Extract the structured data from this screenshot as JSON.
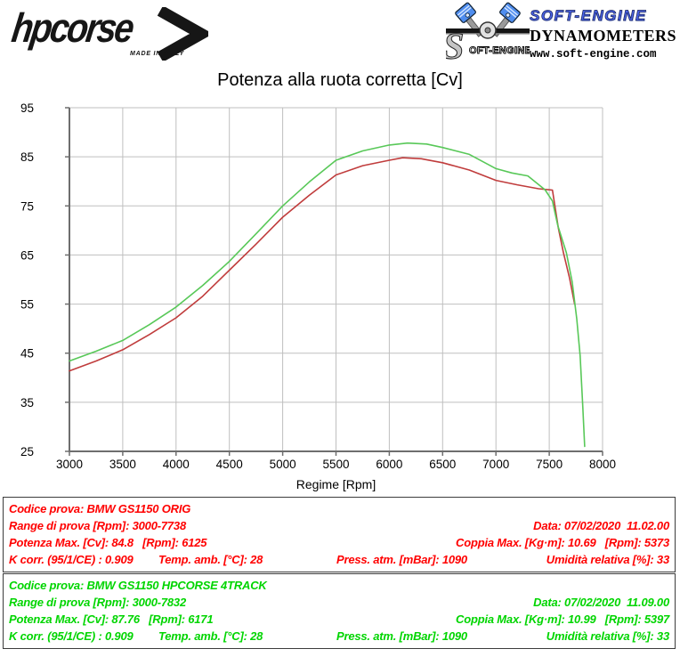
{
  "header": {
    "brand": "hpcorse",
    "made_in": "MADE IN ITALY",
    "soft_engine_title": "SOFT-ENGINE",
    "soft_engine_sub": "DYNAMOMETERS",
    "soft_engine_url": "www.soft-engine.com"
  },
  "chart_data": {
    "type": "line",
    "title": "Potenza alla ruota corretta [Cv]",
    "xlabel": "Regime [Rpm]",
    "ylabel": "",
    "xlim": [
      3000,
      8000
    ],
    "ylim": [
      25,
      95
    ],
    "xticks": [
      3000,
      3500,
      4000,
      4500,
      5000,
      5500,
      6000,
      6500,
      7000,
      7500,
      8000
    ],
    "yticks": [
      25,
      35,
      45,
      55,
      65,
      75,
      85,
      95
    ],
    "grid": true,
    "legend_position": "none",
    "series": [
      {
        "name": "BMW GS1150 ORIG",
        "color": "#c03c3c",
        "points": [
          [
            3000,
            41.4
          ],
          [
            3250,
            43.4
          ],
          [
            3500,
            45.7
          ],
          [
            3750,
            48.8
          ],
          [
            4000,
            52.2
          ],
          [
            4250,
            56.6
          ],
          [
            4500,
            61.9
          ],
          [
            4750,
            67.2
          ],
          [
            5000,
            72.7
          ],
          [
            5250,
            77.2
          ],
          [
            5500,
            81.3
          ],
          [
            5750,
            83.2
          ],
          [
            6000,
            84.3
          ],
          [
            6125,
            84.8
          ],
          [
            6300,
            84.6
          ],
          [
            6500,
            83.8
          ],
          [
            6750,
            82.3
          ],
          [
            7000,
            80.2
          ],
          [
            7200,
            79.3
          ],
          [
            7400,
            78.5
          ],
          [
            7530,
            78.2
          ],
          [
            7585,
            70.5
          ],
          [
            7633,
            65.5
          ],
          [
            7690,
            60.3
          ],
          [
            7738,
            55.0
          ]
        ]
      },
      {
        "name": "BMW GS1150 HPCORSE 4TRACK",
        "color": "#58c858",
        "points": [
          [
            3000,
            43.4
          ],
          [
            3250,
            45.4
          ],
          [
            3500,
            47.6
          ],
          [
            3750,
            50.8
          ],
          [
            4000,
            54.4
          ],
          [
            4250,
            58.8
          ],
          [
            4500,
            63.7
          ],
          [
            4750,
            69.3
          ],
          [
            5000,
            75.0
          ],
          [
            5250,
            79.9
          ],
          [
            5500,
            84.3
          ],
          [
            5750,
            86.2
          ],
          [
            6000,
            87.4
          ],
          [
            6171,
            87.8
          ],
          [
            6350,
            87.6
          ],
          [
            6500,
            86.9
          ],
          [
            6750,
            85.5
          ],
          [
            7000,
            82.6
          ],
          [
            7150,
            81.7
          ],
          [
            7300,
            81.1
          ],
          [
            7460,
            78.3
          ],
          [
            7530,
            76.0
          ],
          [
            7580,
            71.0
          ],
          [
            7660,
            65.5
          ],
          [
            7715,
            59.5
          ],
          [
            7758,
            52.0
          ],
          [
            7790,
            44.5
          ],
          [
            7815,
            34.0
          ],
          [
            7832,
            26.0
          ]
        ]
      }
    ]
  },
  "info_boxes": [
    {
      "text_color": "#ff0000",
      "codice": "Codice prova: BMW GS1150 ORIG",
      "range": "Range di prova [Rpm]: 3000-7738",
      "data": "Data: 07/02/2020  11.02.00",
      "potenza": "Potenza Max. [Cv]: 84.8   [Rpm]: 6125",
      "coppia": "Coppia Max. [Kg·m]: 10.69   [Rpm]: 5373",
      "kcorr": "K corr. (95/1/CE) : 0.909",
      "temp": "Temp. amb. [°C]: 28",
      "press": "Press. atm. [mBar]: 1090",
      "umidita": "Umidità relativa [%]: 33"
    },
    {
      "text_color": "#00d500",
      "codice": "Codice prova: BMW GS1150 HPCORSE 4TRACK",
      "range": "Range di prova [Rpm]: 3000-7832",
      "data": "Data: 07/02/2020  11.09.00",
      "potenza": "Potenza Max. [Cv]: 87.76   [Rpm]: 6171",
      "coppia": "Coppia Max. [Kg·m]: 10.99   [Rpm]: 5397",
      "kcorr": "K corr. (95/1/CE) : 0.909",
      "temp": "Temp. amb. [°C]: 28",
      "press": "Press. atm. [mBar]: 1090",
      "umidita": "Umidità relativa [%]: 33"
    }
  ]
}
